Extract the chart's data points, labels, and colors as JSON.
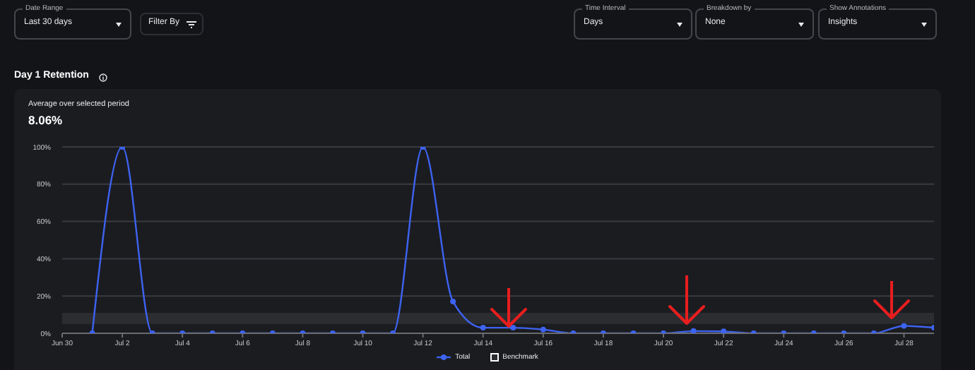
{
  "chart_data": {
    "type": "line",
    "title": "Day 1 Retention",
    "subtitle": "Average over selected period",
    "annotations": [
      "8.06%",
      "Date Range",
      "Last 30 days",
      "Filter By",
      "Time Interval",
      "Days",
      "Breakdown by",
      "None",
      "Show Annotations",
      "Insights"
    ],
    "x": [
      "--07-01",
      "--07-02",
      "--07-03",
      "--07-04",
      "--07-05",
      "--07-06",
      "--07-07",
      "--07-08",
      "--07-09",
      "--07-10",
      "--07-11",
      "--07-12",
      "--07-13",
      "--07-14",
      "--07-15",
      "--07-16",
      "--07-17",
      "--07-18",
      "--07-19",
      "--07-20",
      "--07-21",
      "--07-22",
      "--07-23",
      "--07-24",
      "--07-25",
      "--07-26",
      "--07-27",
      "--07-28",
      "--07-29"
    ],
    "series": [
      {
        "name": "Total",
        "color": "#3d63f0",
        "values": [
          0,
          100,
          0,
          0,
          0,
          0,
          0,
          0,
          0,
          0,
          0,
          100,
          17,
          3,
          3,
          2,
          0,
          0,
          0,
          0,
          1.2,
          1,
          0,
          0,
          0,
          0,
          0,
          4,
          3
        ]
      }
    ],
    "bands": [
      {
        "axis": "y",
        "from": 5,
        "to": 11,
        "label": "Benchmark",
        "color": "#2c2d31"
      }
    ],
    "xlim": [
      "--06-30",
      "--07-29"
    ],
    "xticks": [
      {
        "value": "--06-30",
        "label": "Jun 30"
      },
      {
        "value": "--07-02",
        "label": "Jul 2"
      },
      {
        "value": "--07-04",
        "label": "Jul 4"
      },
      {
        "value": "--07-06",
        "label": "Jul 6"
      },
      {
        "value": "--07-08",
        "label": "Jul 8"
      },
      {
        "value": "--07-10",
        "label": "Jul 10"
      },
      {
        "value": "--07-12",
        "label": "Jul 12"
      },
      {
        "value": "--07-14",
        "label": "Jul 14"
      },
      {
        "value": "--07-16",
        "label": "Jul 16"
      },
      {
        "value": "--07-18",
        "label": "Jul 18"
      },
      {
        "value": "--07-20",
        "label": "Jul 20"
      },
      {
        "value": "--07-22",
        "label": "Jul 22"
      },
      {
        "value": "--07-24",
        "label": "Jul 24"
      },
      {
        "value": "--07-26",
        "label": "Jul 26"
      },
      {
        "value": "--07-28",
        "label": "Jul 28"
      }
    ],
    "ylim": [
      0,
      100
    ],
    "yticks": [
      {
        "value": 0,
        "label": "0%"
      },
      {
        "value": 20,
        "label": "20%"
      },
      {
        "value": 40,
        "label": "40%"
      },
      {
        "value": 60,
        "label": "60%"
      },
      {
        "value": 80,
        "label": "80%"
      },
      {
        "value": 100,
        "label": "100%"
      }
    ],
    "grid": "y",
    "legend": "bottom",
    "marker": "circle",
    "line_style": "solid"
  }
}
